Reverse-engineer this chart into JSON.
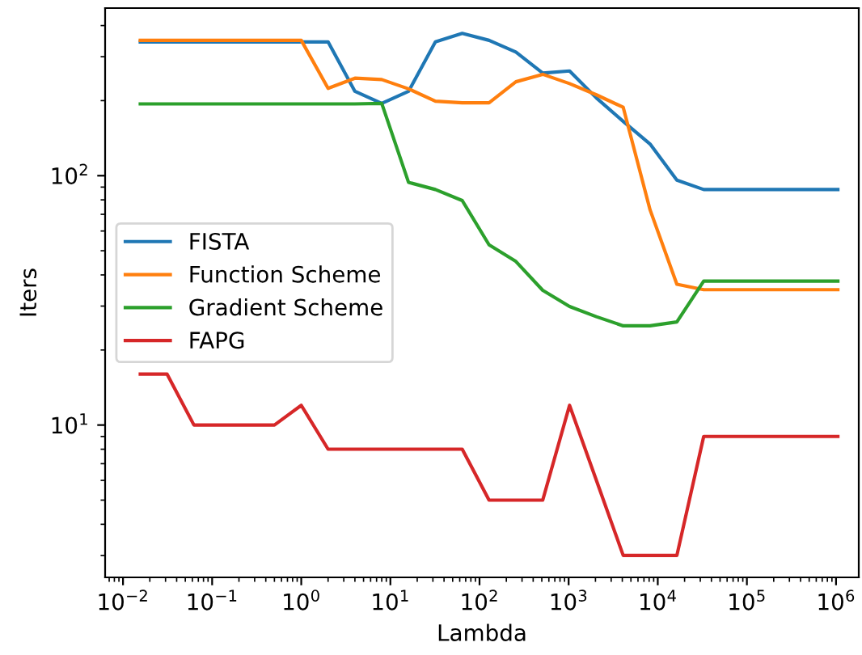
{
  "chart_data": {
    "type": "line",
    "xlabel": "Lambda",
    "ylabel": "Iters",
    "log": "xy",
    "grid": false,
    "legend": "left",
    "marker": "none",
    "line_style": "solid",
    "x": [
      0.015625,
      0.03125,
      0.0625,
      0.125,
      0.25,
      0.5,
      1,
      2,
      4,
      8,
      16,
      32,
      64,
      128,
      256,
      512,
      1024,
      2048,
      4096,
      8192,
      16384,
      32768,
      65536,
      131072,
      262144,
      524288,
      1048576
    ],
    "xlim": [
      0.0063,
      1800000
    ],
    "ylim": [
      2.45,
      470
    ],
    "xticks": [
      {
        "value": 0.01,
        "label": "10$^{−2}$"
      },
      {
        "value": 0.1,
        "label": "10$^{−1}$"
      },
      {
        "value": 1,
        "label": "10$^{0}$"
      },
      {
        "value": 10,
        "label": "10$^{1}$"
      },
      {
        "value": 100,
        "label": "10$^{2}$"
      },
      {
        "value": 1000,
        "label": "10$^{3}$"
      },
      {
        "value": 10000,
        "label": "10$^{4}$"
      },
      {
        "value": 100000,
        "label": "10$^{5}$"
      },
      {
        "value": 1000000,
        "label": "10$^{6}$"
      }
    ],
    "yticks": [
      {
        "value": 10,
        "label": "10$^{1}$"
      },
      {
        "value": 100,
        "label": "10$^{2}$"
      }
    ],
    "series": [
      {
        "name": "FISTA",
        "color": "#1f77b4",
        "values": [
          344,
          344,
          344,
          344,
          344,
          344,
          344,
          344,
          218,
          195,
          218,
          344,
          372,
          349,
          313,
          258,
          263,
          205,
          165,
          134,
          96,
          88,
          88,
          88,
          88,
          88,
          88
        ]
      },
      {
        "name": "Function Scheme",
        "color": "#ff7f0e",
        "values": [
          349,
          349,
          349,
          349,
          349,
          349,
          349,
          224,
          246,
          243,
          223,
          199,
          196,
          196,
          238,
          255,
          234,
          211,
          188,
          73,
          36.7,
          34.9,
          34.9,
          34.9,
          34.9,
          34.9,
          34.9
        ]
      },
      {
        "name": "Gradient Scheme",
        "color": "#2ca02c",
        "values": [
          194,
          194,
          194,
          194,
          194,
          194,
          194,
          194,
          194,
          195,
          94,
          88,
          79.5,
          52.8,
          45.3,
          34.7,
          29.9,
          27.2,
          25,
          25,
          25.9,
          37.8,
          37.8,
          37.8,
          37.8,
          37.8,
          37.8
        ]
      },
      {
        "name": "FAPG",
        "color": "#d62728",
        "values": [
          16,
          16,
          10,
          10,
          10,
          10,
          12,
          8,
          8,
          8,
          8,
          8,
          8,
          5,
          5,
          5,
          12,
          6,
          3,
          3,
          3,
          9,
          9,
          9,
          9,
          9,
          9
        ]
      }
    ]
  }
}
